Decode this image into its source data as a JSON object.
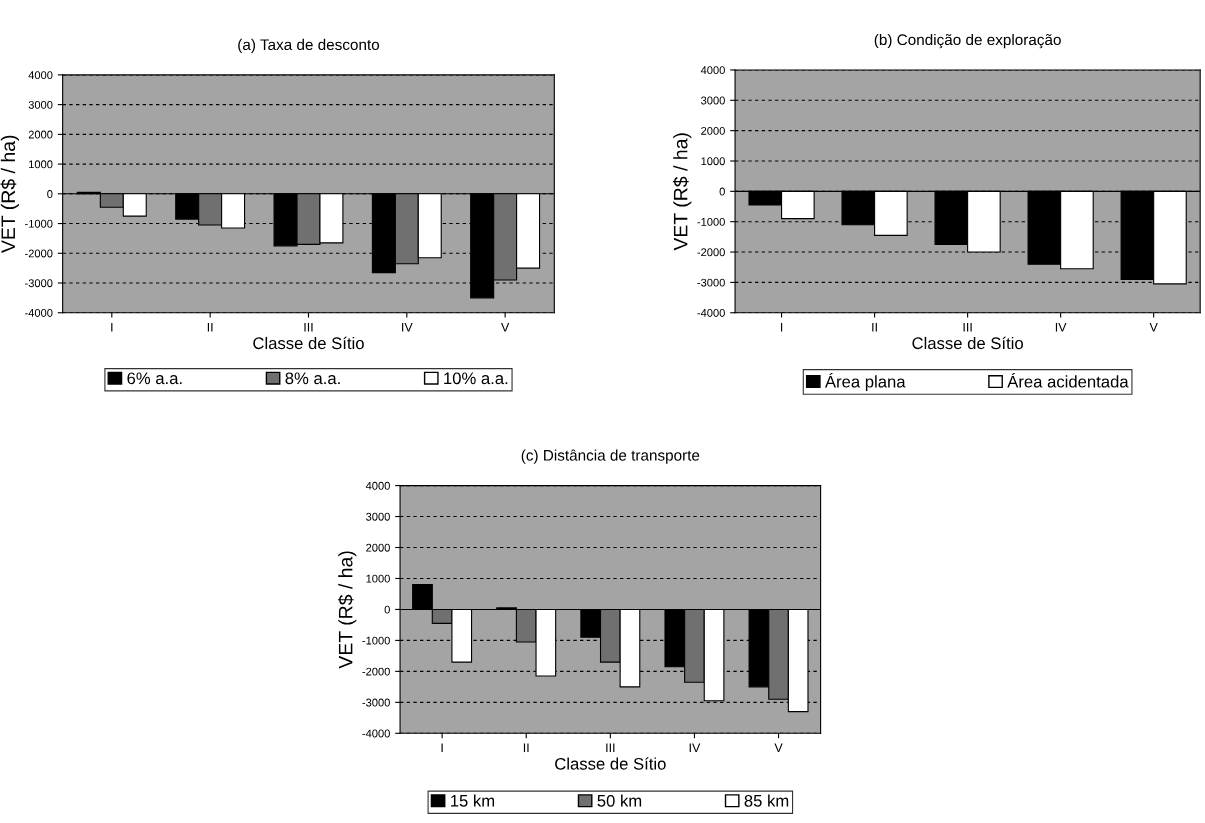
{
  "chart_data": [
    {
      "type": "bar",
      "title": "(a) Taxa de desconto",
      "xlabel": "Classe de Sítio",
      "ylabel": "VET (R$ / ha)",
      "categories": [
        "I",
        "II",
        "III",
        "IV",
        "V"
      ],
      "ylim": [
        -4000,
        4000
      ],
      "yticks": [
        -4000,
        -3000,
        -2000,
        -1000,
        0,
        1000,
        2000,
        3000,
        4000
      ],
      "grid": "y",
      "legend": "bottom",
      "series": [
        {
          "name": "6% a.a.",
          "color": "#000000",
          "values": [
            50,
            -850,
            -1750,
            -2650,
            -3500
          ]
        },
        {
          "name": "8% a.a.",
          "color": "#707070",
          "values": [
            -450,
            -1050,
            -1700,
            -2350,
            -2900
          ]
        },
        {
          "name": "10% a.a.",
          "color": "#ffffff",
          "values": [
            -750,
            -1150,
            -1650,
            -2150,
            -2500
          ]
        }
      ]
    },
    {
      "type": "bar",
      "title": "(b) Condição de exploração",
      "xlabel": "Classe de Sítio",
      "ylabel": "VET (R$ / ha)",
      "categories": [
        "I",
        "II",
        "III",
        "IV",
        "V"
      ],
      "ylim": [
        -4000,
        4000
      ],
      "yticks": [
        -4000,
        -3000,
        -2000,
        -1000,
        0,
        1000,
        2000,
        3000,
        4000
      ],
      "grid": "y",
      "legend": "bottom",
      "series": [
        {
          "name": "Área plana",
          "color": "#000000",
          "values": [
            -450,
            -1100,
            -1750,
            -2400,
            -2900
          ]
        },
        {
          "name": "Área acidentada",
          "color": "#ffffff",
          "values": [
            -900,
            -1450,
            -2000,
            -2550,
            -3050
          ]
        }
      ]
    },
    {
      "type": "bar",
      "title": "(c) Distância de transporte",
      "xlabel": "Classe de Sítio",
      "ylabel": "VET (R$ / ha)",
      "categories": [
        "I",
        "II",
        "III",
        "IV",
        "V"
      ],
      "ylim": [
        -4000,
        4000
      ],
      "yticks": [
        -4000,
        -3000,
        -2000,
        -1000,
        0,
        1000,
        2000,
        3000,
        4000
      ],
      "grid": "y",
      "legend": "bottom",
      "series": [
        {
          "name": "15 km",
          "color": "#000000",
          "values": [
            800,
            50,
            -900,
            -1850,
            -2500
          ]
        },
        {
          "name": "50 km",
          "color": "#707070",
          "values": [
            -450,
            -1050,
            -1700,
            -2350,
            -2900
          ]
        },
        {
          "name": "85 km",
          "color": "#ffffff",
          "values": [
            -1700,
            -2150,
            -2500,
            -2950,
            -3300
          ]
        }
      ]
    }
  ]
}
